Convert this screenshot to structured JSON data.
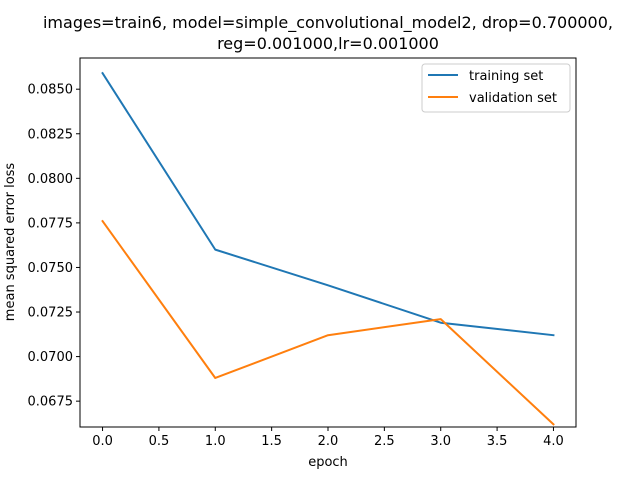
{
  "chart_data": {
    "type": "line",
    "title_lines": [
      "images=train6, model=simple_convolutional_model2, drop=0.700000,",
      "reg=0.001000,lr=0.001000"
    ],
    "xlabel": "epoch",
    "ylabel": "mean squared error loss",
    "x": [
      0,
      1,
      2,
      3,
      4
    ],
    "xlim": [
      -0.2,
      4.2
    ],
    "ylim": [
      0.06605,
      0.08675
    ],
    "x_ticks": [
      0.0,
      0.5,
      1.0,
      1.5,
      2.0,
      2.5,
      3.0,
      3.5,
      4.0
    ],
    "x_tick_labels": [
      "0.0",
      "0.5",
      "1.0",
      "1.5",
      "2.0",
      "2.5",
      "3.0",
      "3.5",
      "4.0"
    ],
    "y_ticks": [
      0.0675,
      0.07,
      0.0725,
      0.075,
      0.0775,
      0.08,
      0.0825,
      0.085
    ],
    "y_tick_labels": [
      "0.0675",
      "0.0700",
      "0.0725",
      "0.0750",
      "0.0775",
      "0.0800",
      "0.0825",
      "0.0850"
    ],
    "grid": false,
    "legend_position": "top-right",
    "series": [
      {
        "name": "training set",
        "color": "#1f77b4",
        "values": [
          0.0859,
          0.076,
          0.074,
          0.0719,
          0.0712
        ]
      },
      {
        "name": "validation set",
        "color": "#ff7f0e",
        "values": [
          0.0776,
          0.0688,
          0.0712,
          0.0721,
          0.0662
        ]
      }
    ]
  }
}
